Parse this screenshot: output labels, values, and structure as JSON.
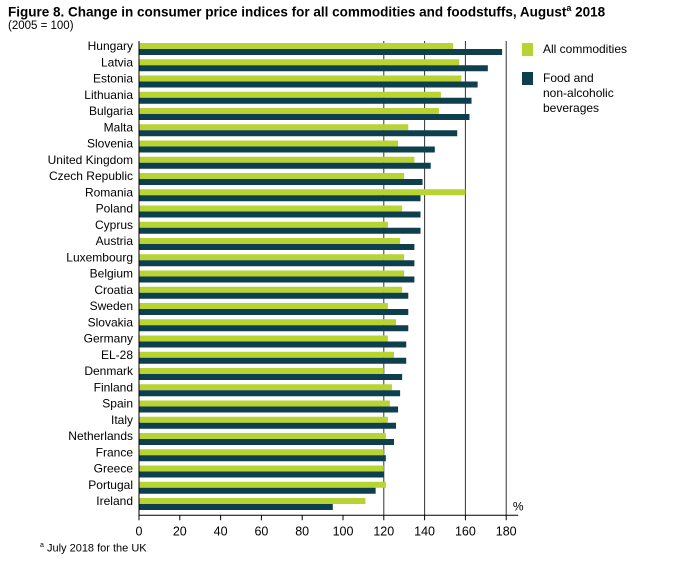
{
  "title": "Figure 8. Change in consumer price indices for all commodities and foodstuffs, August",
  "title_sup": "a",
  "title_year": " 2018",
  "subtitle": "(2005 = 100)",
  "footnote_marker": "a",
  "footnote_text": " July 2018 for the UK",
  "colors": {
    "all": "#b8d432",
    "food": "#0e3f4f"
  },
  "chart_data": {
    "type": "bar",
    "orientation": "horizontal",
    "categories": [
      "Hungary",
      "Latvia",
      "Estonia",
      "Lithuania",
      "Bulgaria",
      "Malta",
      "Slovenia",
      "United Kingdom",
      "Czech Republic",
      "Romania",
      "Poland",
      "Cyprus",
      "Austria",
      "Luxembourg",
      "Belgium",
      "Croatia",
      "Sweden",
      "Slovakia",
      "Germany",
      "EL-28",
      "Denmark",
      "Finland",
      "Spain",
      "Italy",
      "Netherlands",
      "France",
      "Greece",
      "Portugal",
      "Ireland"
    ],
    "series": [
      {
        "name": "All commodities",
        "values": [
          154,
          157,
          158,
          148,
          147,
          132,
          127,
          135,
          130,
          160,
          129,
          122,
          128,
          130,
          130,
          129,
          122,
          126,
          122,
          125,
          120,
          124,
          123,
          122,
          121,
          120,
          120,
          121,
          111
        ]
      },
      {
        "name": "Food and\nnon-alcoholic\nbeverages",
        "values": [
          178,
          171,
          166,
          163,
          162,
          156,
          145,
          143,
          139,
          138,
          138,
          138,
          135,
          135,
          135,
          132,
          132,
          132,
          131,
          131,
          129,
          128,
          127,
          126,
          125,
          121,
          120,
          116,
          95
        ]
      }
    ],
    "x_ticks": [
      "0",
      "20",
      "40",
      "60",
      "80",
      "100",
      "120",
      "140",
      "160",
      "180"
    ],
    "xlim": [
      0,
      180
    ],
    "unit": "%",
    "grid": true,
    "grid_values": [
      120,
      140,
      160,
      180
    ],
    "legend_position": "right"
  }
}
